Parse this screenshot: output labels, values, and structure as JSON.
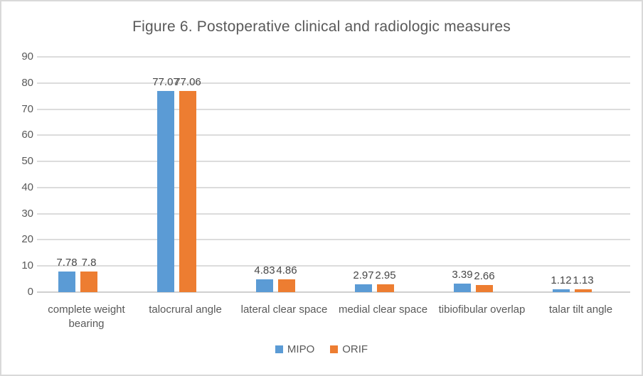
{
  "title": "Figure 6. Postoperative clinical and radiologic measures",
  "chart_data": {
    "type": "bar",
    "title": "Figure 6. Postoperative clinical and radiologic measures",
    "categories": [
      "complete weight bearing",
      "talocrural angle",
      "lateral clear space",
      "medial clear space",
      "tibiofibular overlap",
      "talar tilt angle"
    ],
    "series": [
      {
        "name": "MIPO",
        "color": "#5B9BD5",
        "values": [
          7.78,
          77.07,
          4.83,
          2.97,
          3.39,
          1.12
        ],
        "labels": [
          "7.78",
          "77.07",
          "4.83",
          "2.97",
          "3.39",
          "1.12"
        ]
      },
      {
        "name": "ORIF",
        "color": "#ED7D31",
        "values": [
          7.8,
          77.06,
          4.86,
          2.95,
          2.66,
          1.13
        ],
        "labels": [
          "7.8",
          "77.06",
          "4.86",
          "2.95",
          "2.66",
          "1.13"
        ]
      }
    ],
    "ylim": [
      0,
      90
    ],
    "yticks": [
      0,
      10,
      20,
      30,
      40,
      50,
      60,
      70,
      80,
      90
    ],
    "grid": true,
    "legend_position": "bottom",
    "gridline_color": "#dcdcdc",
    "axis_text_color": "#595959",
    "data_label_color": "#474747"
  }
}
